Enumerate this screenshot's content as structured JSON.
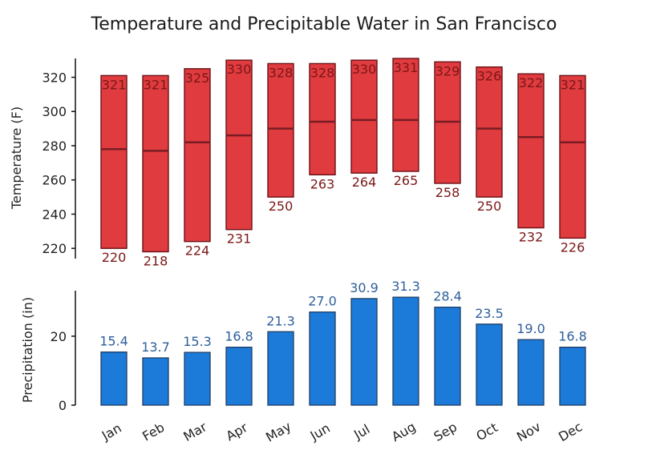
{
  "title": "Temperature and Precipitable Water in San Francisco",
  "colors": {
    "temp_fill": "#e03b3f",
    "temp_stroke": "#6b1116",
    "temp_mid": "#7a1c24",
    "temp_text": "#7b1717",
    "precip_fill": "#1c7ad9",
    "precip_stroke": "#1f3f64",
    "precip_text": "#2d5f9a",
    "axis": "#111111"
  },
  "chart_data": [
    {
      "type": "bar",
      "name": "temperature",
      "ylabel": "Temperature (F)",
      "ylim": [
        214,
        331
      ],
      "yticks": [
        220,
        240,
        260,
        280,
        300,
        320
      ],
      "categories": [
        "Jan",
        "Feb",
        "Mar",
        "Apr",
        "May",
        "Jun",
        "Jul",
        "Aug",
        "Sep",
        "Oct",
        "Nov",
        "Dec"
      ],
      "lows": [
        220,
        218,
        224,
        231,
        250,
        263,
        264,
        265,
        258,
        250,
        232,
        226
      ],
      "highs": [
        321,
        321,
        325,
        330,
        328,
        328,
        330,
        331,
        329,
        326,
        322,
        321
      ],
      "mids": [
        278,
        277,
        282,
        286,
        290,
        294,
        295,
        295,
        294,
        290,
        285,
        282
      ]
    },
    {
      "type": "bar",
      "name": "precipitation",
      "ylabel": "Precipitation (in)",
      "ylim": [
        0,
        33.2
      ],
      "yticks": [
        0,
        20
      ],
      "categories": [
        "Jan",
        "Feb",
        "Mar",
        "Apr",
        "May",
        "Jun",
        "Jul",
        "Aug",
        "Sep",
        "Oct",
        "Nov",
        "Dec"
      ],
      "values": [
        15.4,
        13.7,
        15.3,
        16.8,
        21.3,
        27.0,
        30.9,
        31.3,
        28.4,
        23.5,
        19.0,
        16.8
      ]
    }
  ]
}
